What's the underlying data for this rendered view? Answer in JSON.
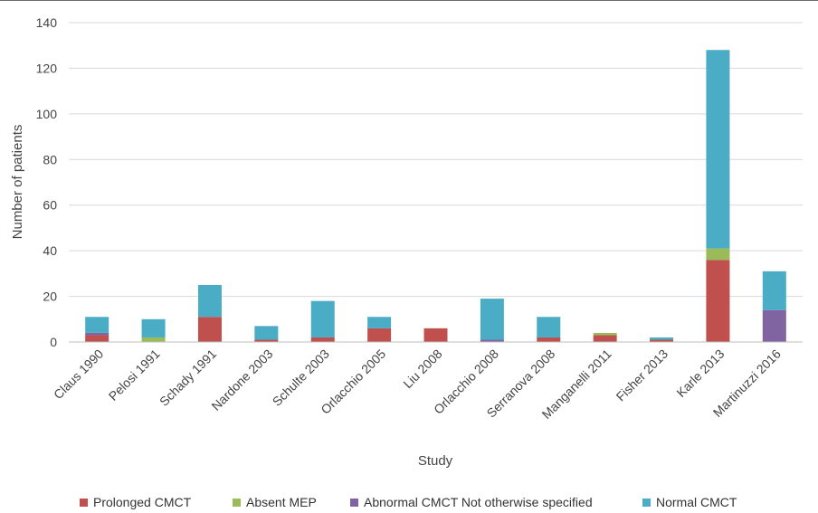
{
  "chart_data": {
    "type": "bar",
    "stacked": true,
    "title": "",
    "xlabel": "Study",
    "ylabel": "Number of patients",
    "ylim": [
      0,
      140
    ],
    "yticks": [
      0,
      20,
      40,
      60,
      80,
      100,
      120,
      140
    ],
    "grid": "horizontal",
    "legend_position": "bottom",
    "categories": [
      "Claus 1990",
      "Pelosi 1991",
      "Schady 1991",
      "Nardone 2003",
      "Schulte 2003",
      "Orlacchio 2005",
      "Liu 2008",
      "Orlacchio 2008",
      "Serranova 2008",
      "Manganelli 2011",
      "Fisher 2013",
      "Karle 2013",
      "Martinuzzi 2016"
    ],
    "series": [
      {
        "name": "Prolonged CMCT",
        "color": "#c0504d",
        "values": [
          3,
          0,
          11,
          1,
          2,
          6,
          6,
          0,
          2,
          3,
          1,
          36,
          0
        ]
      },
      {
        "name": "Absent MEP",
        "color": "#9bbb59",
        "values": [
          0,
          2,
          0,
          0,
          0,
          0,
          0,
          0,
          0,
          1,
          0,
          5,
          0
        ]
      },
      {
        "name": "Abnormal CMCT Not otherwise specified",
        "color": "#8064a2",
        "values": [
          1,
          0,
          0,
          0,
          0,
          0,
          0,
          1,
          0,
          0,
          0,
          0,
          14
        ]
      },
      {
        "name": "Normal CMCT",
        "color": "#4bacc6",
        "values": [
          7,
          8,
          14,
          6,
          16,
          5,
          0,
          18,
          9,
          0,
          1,
          87,
          17
        ]
      }
    ]
  }
}
